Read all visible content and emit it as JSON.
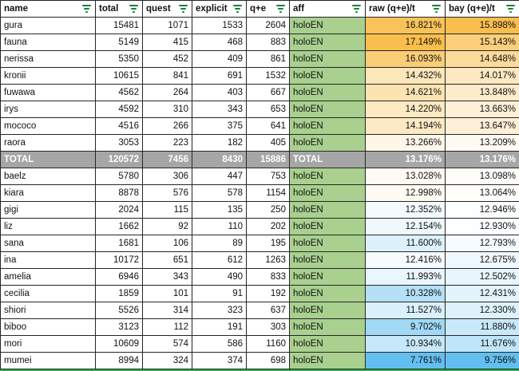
{
  "table": {
    "columns": [
      {
        "key": "name",
        "label": "name",
        "align": "left",
        "width": 119
      },
      {
        "key": "total",
        "label": "total",
        "align": "right",
        "width": 59
      },
      {
        "key": "quest",
        "label": "quest",
        "align": "right",
        "width": 62
      },
      {
        "key": "explicit",
        "label": "explicit",
        "align": "right",
        "width": 68
      },
      {
        "key": "qe",
        "label": "q+e",
        "align": "right",
        "width": 54
      },
      {
        "key": "aff",
        "label": "aff",
        "align": "left",
        "width": 95
      },
      {
        "key": "raw",
        "label": "raw (q+e)/t",
        "align": "right",
        "width": 100
      },
      {
        "key": "bay",
        "label": "bay (q+e)/t",
        "align": "right",
        "width": 93
      }
    ],
    "rows": [
      {
        "name": "gura",
        "total": "15481",
        "quest": "1071",
        "explicit": "1533",
        "qe": "2604",
        "aff": "holoEN",
        "raw": "16.821%",
        "bay": "15.898%",
        "is_total": false
      },
      {
        "name": "fauna",
        "total": "5149",
        "quest": "415",
        "explicit": "468",
        "qe": "883",
        "aff": "holoEN",
        "raw": "17.149%",
        "bay": "15.143%",
        "is_total": false
      },
      {
        "name": "nerissa",
        "total": "5350",
        "quest": "452",
        "explicit": "409",
        "qe": "861",
        "aff": "holoEN",
        "raw": "16.093%",
        "bay": "14.648%",
        "is_total": false
      },
      {
        "name": "kronii",
        "total": "10615",
        "quest": "841",
        "explicit": "691",
        "qe": "1532",
        "aff": "holoEN",
        "raw": "14.432%",
        "bay": "14.017%",
        "is_total": false
      },
      {
        "name": "fuwawa",
        "total": "4562",
        "quest": "264",
        "explicit": "403",
        "qe": "667",
        "aff": "holoEN",
        "raw": "14.621%",
        "bay": "13.848%",
        "is_total": false
      },
      {
        "name": "irys",
        "total": "4592",
        "quest": "310",
        "explicit": "343",
        "qe": "653",
        "aff": "holoEN",
        "raw": "14.220%",
        "bay": "13.663%",
        "is_total": false
      },
      {
        "name": "mococo",
        "total": "4516",
        "quest": "266",
        "explicit": "375",
        "qe": "641",
        "aff": "holoEN",
        "raw": "14.194%",
        "bay": "13.647%",
        "is_total": false
      },
      {
        "name": "raora",
        "total": "3053",
        "quest": "223",
        "explicit": "182",
        "qe": "405",
        "aff": "holoEN",
        "raw": "13.266%",
        "bay": "13.209%",
        "is_total": false
      },
      {
        "name": "TOTAL",
        "total": "120572",
        "quest": "7456",
        "explicit": "8430",
        "qe": "15886",
        "aff": "TOTAL",
        "raw": "13.176%",
        "bay": "13.176%",
        "is_total": true
      },
      {
        "name": "baelz",
        "total": "5780",
        "quest": "306",
        "explicit": "447",
        "qe": "753",
        "aff": "holoEN",
        "raw": "13.028%",
        "bay": "13.098%",
        "is_total": false
      },
      {
        "name": "kiara",
        "total": "8878",
        "quest": "576",
        "explicit": "578",
        "qe": "1154",
        "aff": "holoEN",
        "raw": "12.998%",
        "bay": "13.064%",
        "is_total": false
      },
      {
        "name": "gigi",
        "total": "2024",
        "quest": "115",
        "explicit": "135",
        "qe": "250",
        "aff": "holoEN",
        "raw": "12.352%",
        "bay": "12.946%",
        "is_total": false
      },
      {
        "name": "liz",
        "total": "1662",
        "quest": "92",
        "explicit": "110",
        "qe": "202",
        "aff": "holoEN",
        "raw": "12.154%",
        "bay": "12.930%",
        "is_total": false
      },
      {
        "name": "sana",
        "total": "1681",
        "quest": "106",
        "explicit": "89",
        "qe": "195",
        "aff": "holoEN",
        "raw": "11.600%",
        "bay": "12.793%",
        "is_total": false
      },
      {
        "name": "ina",
        "total": "10172",
        "quest": "651",
        "explicit": "612",
        "qe": "1263",
        "aff": "holoEN",
        "raw": "12.416%",
        "bay": "12.675%",
        "is_total": false
      },
      {
        "name": "amelia",
        "total": "6946",
        "quest": "343",
        "explicit": "490",
        "qe": "833",
        "aff": "holoEN",
        "raw": "11.993%",
        "bay": "12.502%",
        "is_total": false
      },
      {
        "name": "cecilia",
        "total": "1859",
        "quest": "101",
        "explicit": "91",
        "qe": "192",
        "aff": "holoEN",
        "raw": "10.328%",
        "bay": "12.431%",
        "is_total": false
      },
      {
        "name": "shiori",
        "total": "5526",
        "quest": "314",
        "explicit": "323",
        "qe": "637",
        "aff": "holoEN",
        "raw": "11.527%",
        "bay": "12.330%",
        "is_total": false
      },
      {
        "name": "biboo",
        "total": "3123",
        "quest": "112",
        "explicit": "191",
        "qe": "303",
        "aff": "holoEN",
        "raw": "9.702%",
        "bay": "11.880%",
        "is_total": false
      },
      {
        "name": "mori",
        "total": "10609",
        "quest": "574",
        "explicit": "586",
        "qe": "1160",
        "aff": "holoEN",
        "raw": "10.934%",
        "bay": "11.676%",
        "is_total": false
      },
      {
        "name": "mumei",
        "total": "8994",
        "quest": "324",
        "explicit": "374",
        "qe": "698",
        "aff": "holoEN",
        "raw": "7.761%",
        "bay": "9.756%",
        "is_total": false
      }
    ]
  },
  "colors": {
    "grid_border": "#262626",
    "aff_green": "#A9D08E",
    "total_row_bg": "#A6A6A6",
    "total_row_text": "#FFFFFF",
    "filter_icon_green": "#188038",
    "bottom_border_green": "#34A853",
    "scale": {
      "min_color": "#63BFF0",
      "mid_color": "#FFFFFF",
      "max_color": "#F9BE4D",
      "raw": {
        "min": 7.761,
        "mid": 12.7,
        "max": 17.149
      },
      "bay": {
        "min": 9.756,
        "mid": 13.0,
        "max": 15.898
      }
    }
  }
}
